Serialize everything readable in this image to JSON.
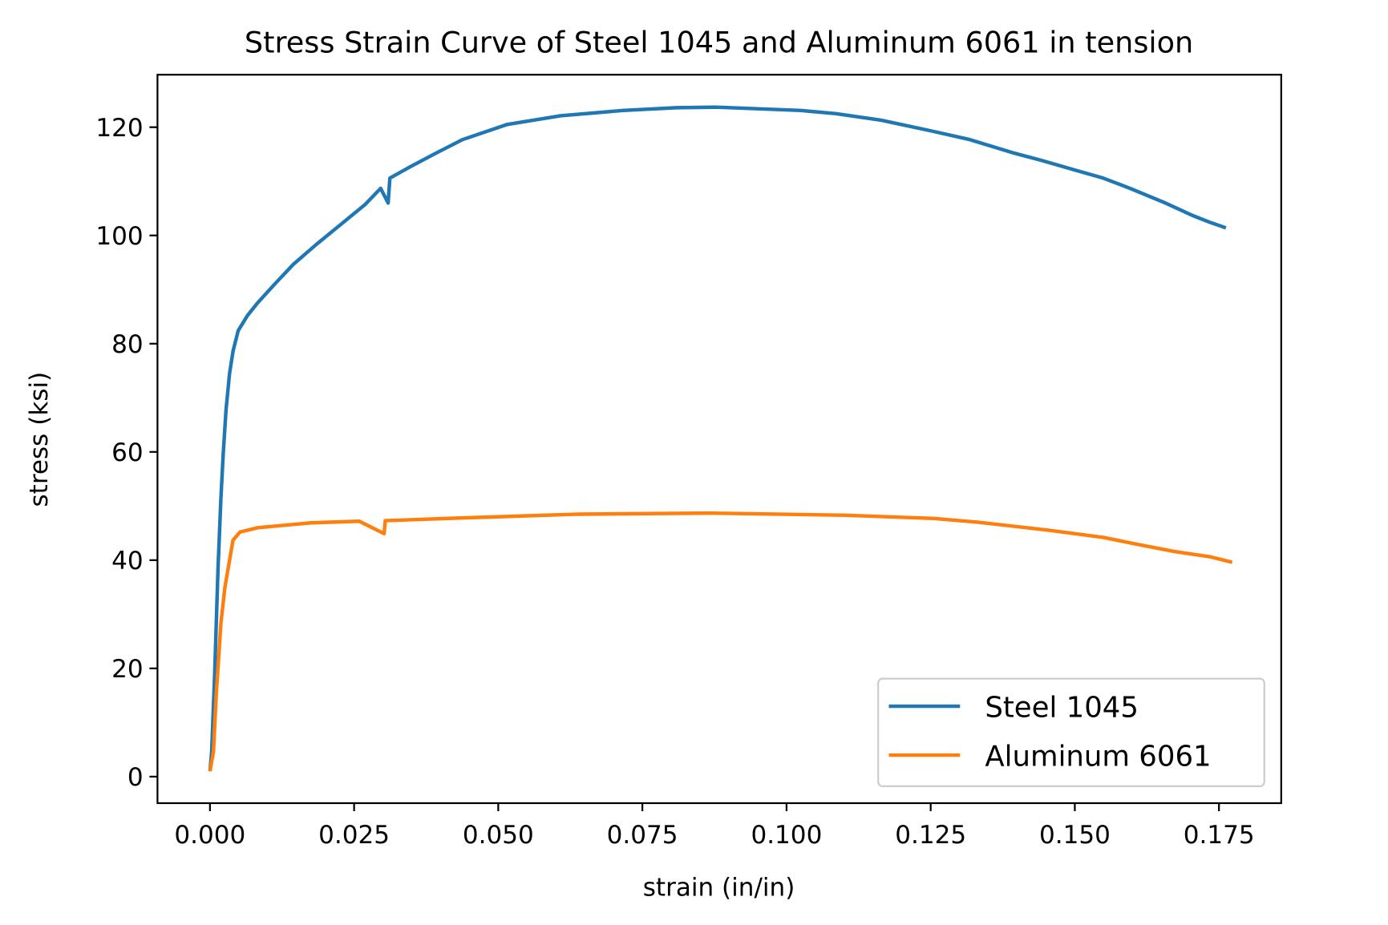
{
  "chart_data": {
    "type": "line",
    "title": "Stress Strain Curve of Steel 1045 and Aluminum 6061 in tension",
    "xlabel": "strain (in/in)",
    "ylabel": "stress (ksi)",
    "xlim": [
      -0.0091,
      0.1858
    ],
    "ylim": [
      -4.9,
      129.7
    ],
    "xticks": [
      "0.000",
      "0.025",
      "0.050",
      "0.075",
      "0.100",
      "0.125",
      "0.150",
      "0.175"
    ],
    "yticks": [
      "0",
      "20",
      "40",
      "60",
      "80",
      "100",
      "120"
    ],
    "grid": false,
    "legend_position": "bottom-right",
    "series": [
      {
        "name": "Steel 1045",
        "color": "#1f77b4",
        "x": [
          0.0,
          0.0003,
          0.0008,
          0.0014,
          0.0019,
          0.0023,
          0.0028,
          0.0034,
          0.004,
          0.0049,
          0.0065,
          0.0083,
          0.0114,
          0.0145,
          0.0184,
          0.0222,
          0.0269,
          0.0296,
          0.0309,
          0.0312,
          0.0346,
          0.0392,
          0.0438,
          0.0515,
          0.0608,
          0.0716,
          0.0809,
          0.0878,
          0.1025,
          0.1086,
          0.1164,
          0.1256,
          0.1318,
          0.1395,
          0.1441,
          0.1503,
          0.1549,
          0.1596,
          0.1657,
          0.1704,
          0.1735,
          0.1762
        ],
        "y": [
          1,
          4.6,
          18.6,
          38.3,
          51.5,
          59.7,
          67.9,
          74.5,
          78.6,
          82.4,
          85.2,
          87.6,
          91.2,
          94.7,
          98.3,
          101.6,
          105.7,
          108.7,
          106.0,
          110.6,
          112.6,
          115.2,
          117.7,
          120.5,
          122.1,
          123.1,
          123.6,
          123.7,
          123.1,
          122.5,
          121.3,
          119.2,
          117.7,
          115.2,
          113.9,
          112.0,
          110.6,
          108.7,
          106.0,
          103.7,
          102.4,
          101.4
        ]
      },
      {
        "name": "Aluminum 6061",
        "color": "#ff7f0e",
        "x": [
          0.0,
          0.0006,
          0.0011,
          0.0019,
          0.0026,
          0.0034,
          0.004,
          0.0052,
          0.0083,
          0.0176,
          0.0259,
          0.0302,
          0.0304,
          0.0438,
          0.0639,
          0.087,
          0.1102,
          0.1256,
          0.1333,
          0.1457,
          0.1549,
          0.161,
          0.1673,
          0.1735,
          0.1773
        ],
        "y": [
          1,
          4.6,
          15.3,
          28.4,
          35,
          40,
          43.7,
          45.2,
          46,
          46.9,
          47.2,
          44.9,
          47.3,
          47.8,
          48.5,
          48.7,
          48.3,
          47.7,
          47.0,
          45.5,
          44.2,
          42.9,
          41.6,
          40.6,
          39.6
        ]
      }
    ]
  }
}
